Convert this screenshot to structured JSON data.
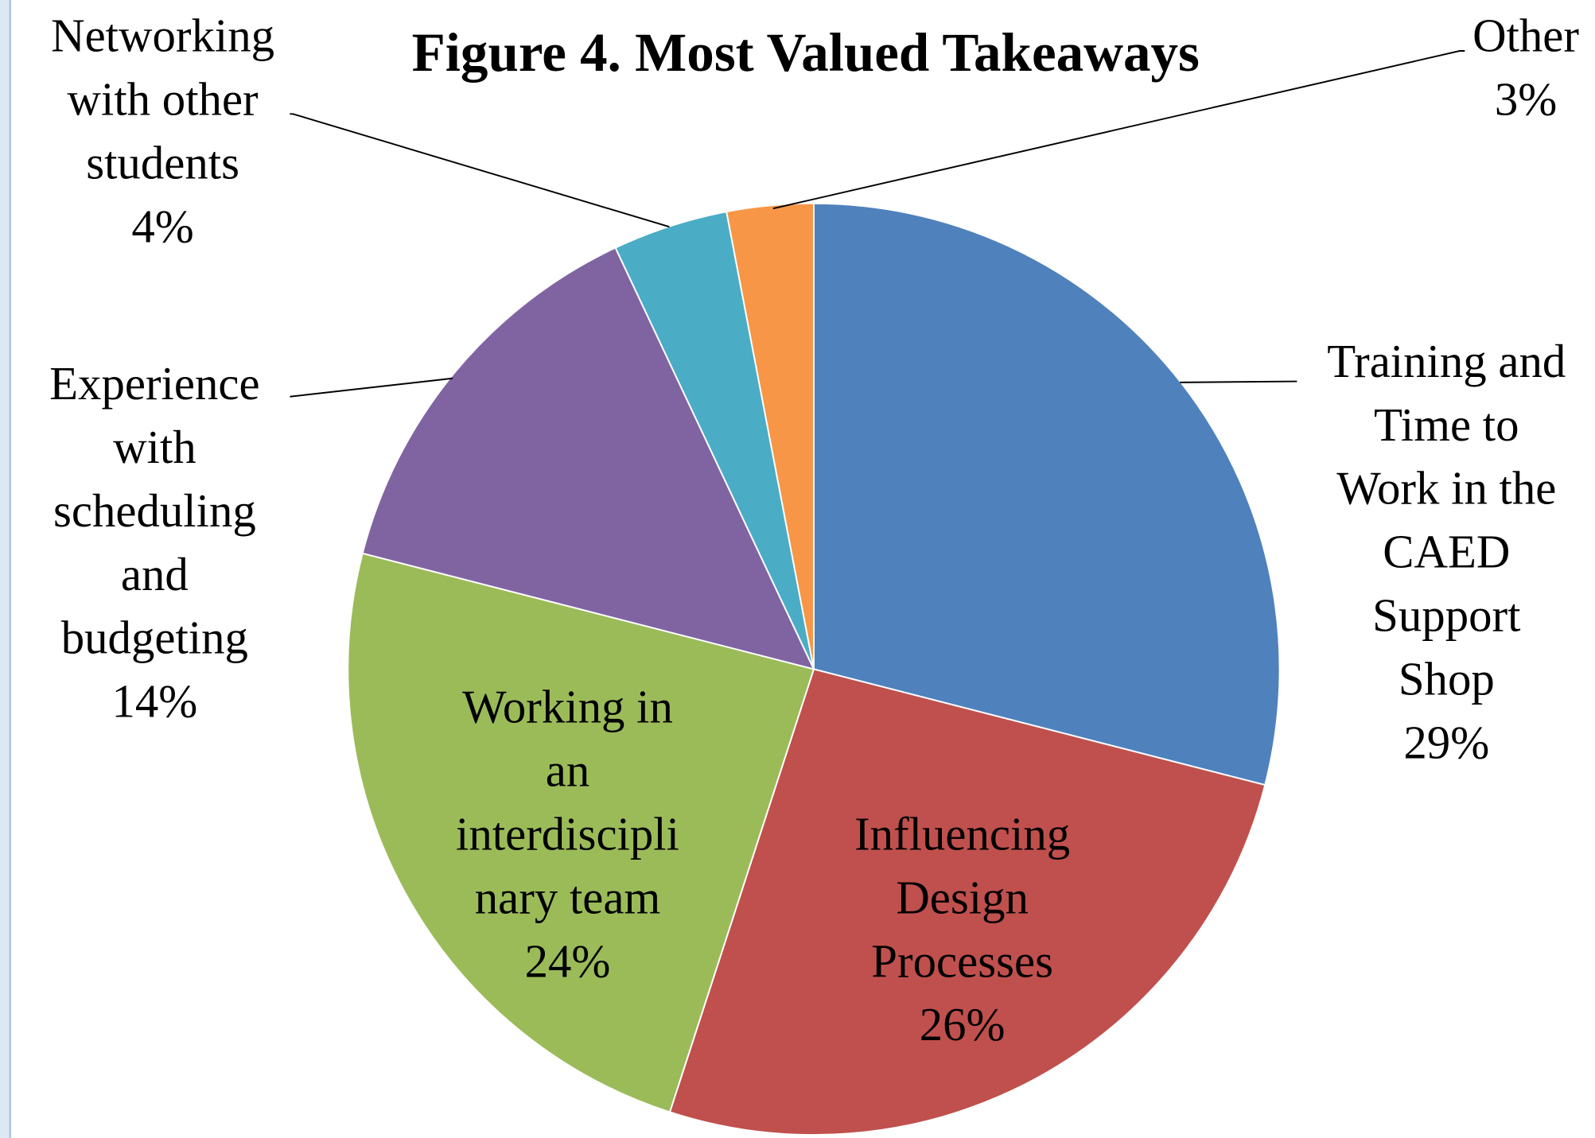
{
  "chart_data": {
    "type": "pie",
    "title": "Figure 4. Most Valued Takeaways",
    "categories": [
      [
        "Training and",
        "Time to",
        "Work in the",
        "CAED",
        "Support",
        "Shop"
      ],
      [
        "Influencing",
        "Design",
        "Processes"
      ],
      [
        "Working in",
        "an",
        "interdiscipli",
        "nary team"
      ],
      [
        "Experience",
        "with",
        "scheduling",
        "and",
        "budgeting"
      ],
      [
        "Networking",
        "with other",
        "students"
      ],
      [
        "Other"
      ]
    ],
    "values": [
      29,
      26,
      24,
      14,
      4,
      3
    ],
    "value_labels": [
      "29%",
      "26%",
      "24%",
      "14%",
      "4%",
      "3%"
    ],
    "colors": [
      "#4f81bd",
      "#c0504d",
      "#9bbb59",
      "#8064a2",
      "#4bacc6",
      "#f79646"
    ]
  }
}
